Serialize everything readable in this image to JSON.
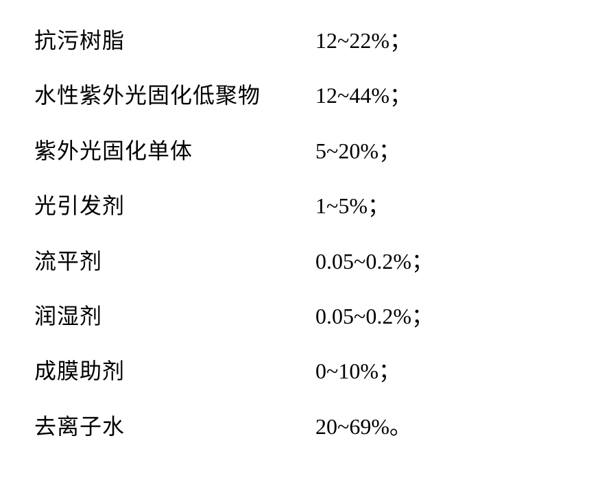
{
  "rows": [
    {
      "label": "抗污树脂",
      "value": "12~22%；"
    },
    {
      "label": "水性紫外光固化低聚物",
      "value": "12~44%；"
    },
    {
      "label": "紫外光固化单体",
      "value": "5~20%；"
    },
    {
      "label": "光引发剂",
      "value": "1~5%；"
    },
    {
      "label": "流平剂",
      "value": "0.05~0.2%；"
    },
    {
      "label": "润湿剂",
      "value": "0.05~0.2%；"
    },
    {
      "label": "成膜助剂",
      "value": "0~10%；"
    },
    {
      "label": "去离子水",
      "value": "20~69%。"
    }
  ]
}
